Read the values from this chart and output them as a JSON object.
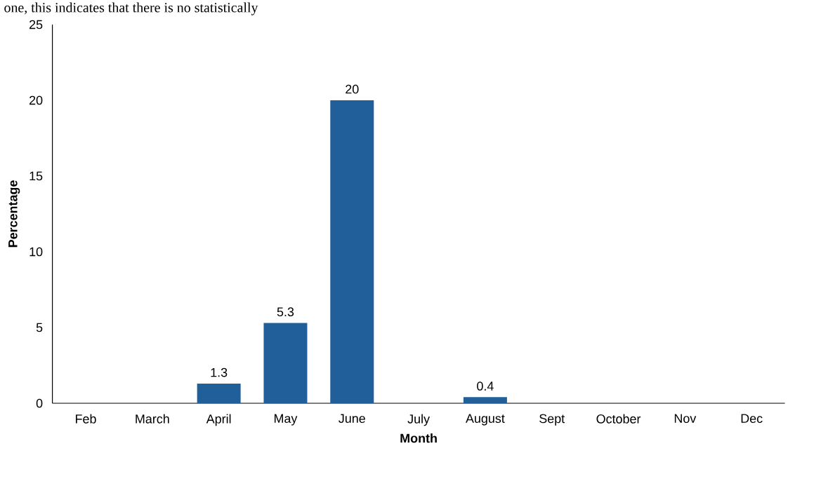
{
  "chart_data": {
    "type": "bar",
    "xlabel": "Month",
    "ylabel": "Percentage",
    "annotations": [
      "one, this indicates that there is no statistically"
    ],
    "categories": [
      "Feb",
      "March",
      "April",
      "May",
      "June",
      "July",
      "August",
      "Sept",
      "October",
      "Nov",
      "Dec"
    ],
    "values": [
      0,
      0,
      1.3,
      5.3,
      20,
      0,
      0.4,
      0,
      0,
      0,
      0
    ],
    "value_labels": [
      null,
      null,
      "1.3",
      "5.3",
      "20",
      null,
      "0.4",
      null,
      null,
      null,
      null
    ],
    "color": "#215f9a",
    "ylim": [
      0,
      25
    ],
    "yticks": [
      0,
      5,
      10,
      15,
      20,
      25
    ],
    "grid": false
  }
}
